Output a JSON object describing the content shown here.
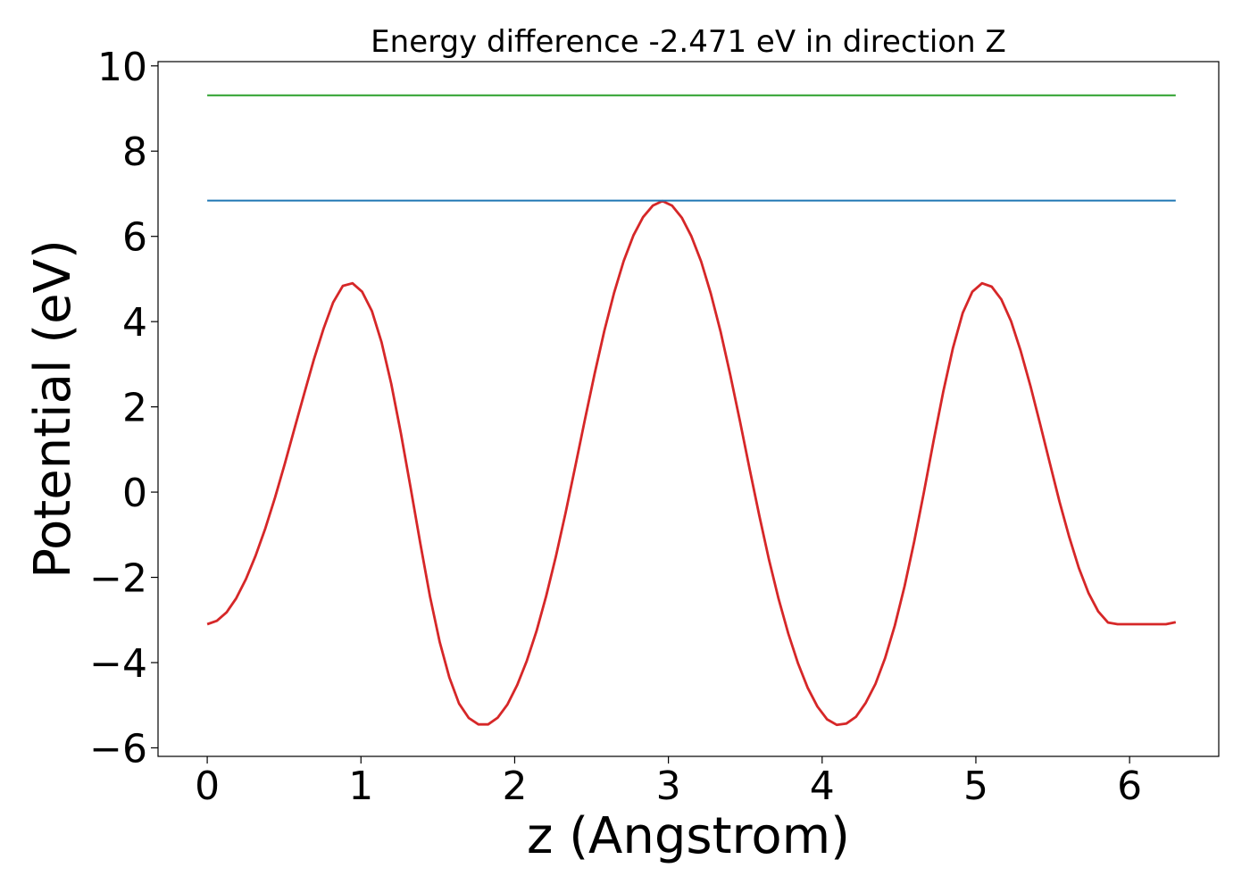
{
  "chart_data": {
    "type": "line",
    "title": "Energy difference -2.471 eV in direction Z",
    "xlabel": "z (Angstrom)",
    "ylabel": "Potential (eV)",
    "xlim": [
      -0.32,
      6.58
    ],
    "ylim": [
      -6.2,
      10.1
    ],
    "x_ticks": [
      0,
      1,
      2,
      3,
      4,
      5,
      6
    ],
    "x_tick_labels": [
      "0",
      "1",
      "2",
      "3",
      "4",
      "5",
      "6"
    ],
    "y_ticks": [
      -6,
      -4,
      -2,
      0,
      2,
      4,
      6,
      8,
      10
    ],
    "y_tick_labels": [
      "−6",
      "−4",
      "−2",
      "0",
      "2",
      "4",
      "6",
      "8",
      "10"
    ],
    "grid": false,
    "legend": "none",
    "series": [
      {
        "color": "#d62728",
        "x": [
          0.0,
          0.063,
          0.126,
          0.189,
          0.252,
          0.315,
          0.378,
          0.441,
          0.504,
          0.567,
          0.63,
          0.693,
          0.756,
          0.819,
          0.882,
          0.945,
          1.008,
          1.071,
          1.134,
          1.197,
          1.26,
          1.323,
          1.386,
          1.449,
          1.512,
          1.575,
          1.638,
          1.701,
          1.764,
          1.827,
          1.89,
          1.953,
          2.016,
          2.079,
          2.142,
          2.205,
          2.268,
          2.331,
          2.394,
          2.457,
          2.52,
          2.583,
          2.646,
          2.709,
          2.772,
          2.835,
          2.898,
          2.961,
          3.024,
          3.087,
          3.15,
          3.213,
          3.276,
          3.339,
          3.402,
          3.465,
          3.528,
          3.591,
          3.654,
          3.717,
          3.78,
          3.843,
          3.906,
          3.969,
          4.032,
          4.095,
          4.158,
          4.221,
          4.284,
          4.347,
          4.41,
          4.473,
          4.536,
          4.599,
          4.662,
          4.725,
          4.788,
          4.851,
          4.914,
          4.977,
          5.04,
          5.103,
          5.166,
          5.229,
          5.292,
          5.355,
          5.418,
          5.481,
          5.544,
          5.607,
          5.67,
          5.733,
          5.796,
          5.859,
          5.922,
          5.985,
          6.048,
          6.111,
          6.174,
          6.237,
          6.3
        ],
        "y": [
          -3.1,
          -3.02,
          -2.82,
          -2.49,
          -2.04,
          -1.49,
          -0.85,
          -0.13,
          0.66,
          1.48,
          2.3,
          3.1,
          3.83,
          4.45,
          4.84,
          4.9,
          4.7,
          4.25,
          3.52,
          2.54,
          1.38,
          0.1,
          -1.2,
          -2.45,
          -3.51,
          -4.35,
          -4.96,
          -5.3,
          -5.45,
          -5.45,
          -5.29,
          -4.98,
          -4.53,
          -3.96,
          -3.26,
          -2.44,
          -1.51,
          -0.49,
          0.6,
          1.7,
          2.78,
          3.78,
          4.67,
          5.42,
          6.02,
          6.45,
          6.72,
          6.83,
          6.72,
          6.44,
          6.0,
          5.41,
          4.66,
          3.77,
          2.76,
          1.67,
          0.55,
          -0.55,
          -1.58,
          -2.51,
          -3.32,
          -4.02,
          -4.59,
          -5.03,
          -5.33,
          -5.46,
          -5.43,
          -5.27,
          -4.94,
          -4.5,
          -3.89,
          -3.13,
          -2.21,
          -1.16,
          0.0,
          1.2,
          2.36,
          3.38,
          4.2,
          4.7,
          4.9,
          4.82,
          4.52,
          4.01,
          3.31,
          2.49,
          1.6,
          0.68,
          -0.22,
          -1.05,
          -1.78,
          -2.37,
          -2.8,
          -3.06,
          -3.1,
          -3.1,
          -3.1,
          -3.1,
          -3.1,
          -3.1,
          -3.05
        ]
      },
      {
        "color": "#1f77b4",
        "x": [
          0.0,
          6.3
        ],
        "y": [
          6.84,
          6.84
        ]
      },
      {
        "color": "#2ca02c",
        "x": [
          0.0,
          6.3
        ],
        "y": [
          9.31,
          9.31
        ]
      }
    ]
  }
}
